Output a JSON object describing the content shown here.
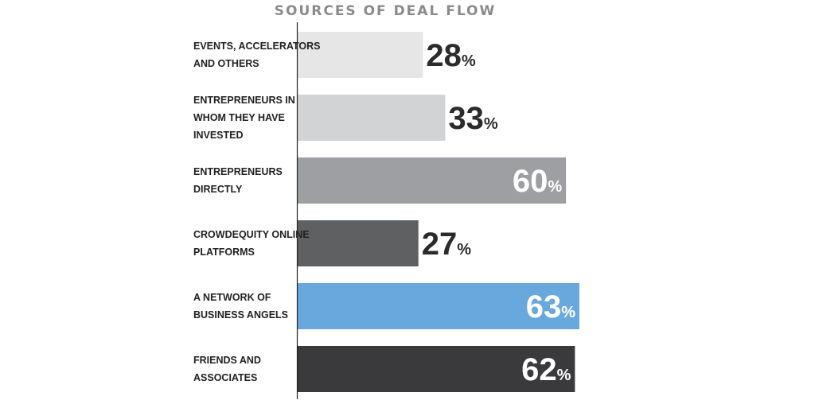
{
  "chart_data": {
    "type": "bar",
    "orientation": "horizontal",
    "title": "SOURCES OF DEAL FLOW",
    "categories": [
      "EVENTS, ACCELERATORS AND OTHERS",
      "ENTREPRENEURS IN WHOM THEY HAVE INVESTED",
      "ENTREPRENEURS DIRECTLY",
      "CROWDEQUITY ONLINE PLATFORMS",
      "A NETWORK OF BUSINESS ANGELS",
      "FRIENDS AND ASSOCIATES"
    ],
    "category_lines": [
      [
        "EVENTS, ACCELERATORS",
        "AND OTHERS"
      ],
      [
        "ENTREPRENEURS IN",
        "WHOM THEY HAVE",
        "INVESTED"
      ],
      [
        "ENTREPRENEURS",
        "DIRECTLY"
      ],
      [
        "CROWDEQUITY ONLINE",
        "PLATFORMS"
      ],
      [
        "A NETWORK OF",
        "BUSINESS ANGELS"
      ],
      [
        "FRIENDS AND",
        "ASSOCIATES"
      ]
    ],
    "values": [
      28,
      33,
      60,
      27,
      63,
      62
    ],
    "value_labels": [
      "28",
      "33",
      "60",
      "27",
      "63",
      "62"
    ],
    "unit": "%",
    "bar_colors": [
      "#e6e6e7",
      "#d2d3d4",
      "#9d9fa2",
      "#5f6062",
      "#68a8dc",
      "#3a3a3c"
    ],
    "label_inside": [
      false,
      false,
      true,
      false,
      true,
      true
    ],
    "xlim": [
      0,
      63
    ],
    "grid": false,
    "legend": "none"
  }
}
